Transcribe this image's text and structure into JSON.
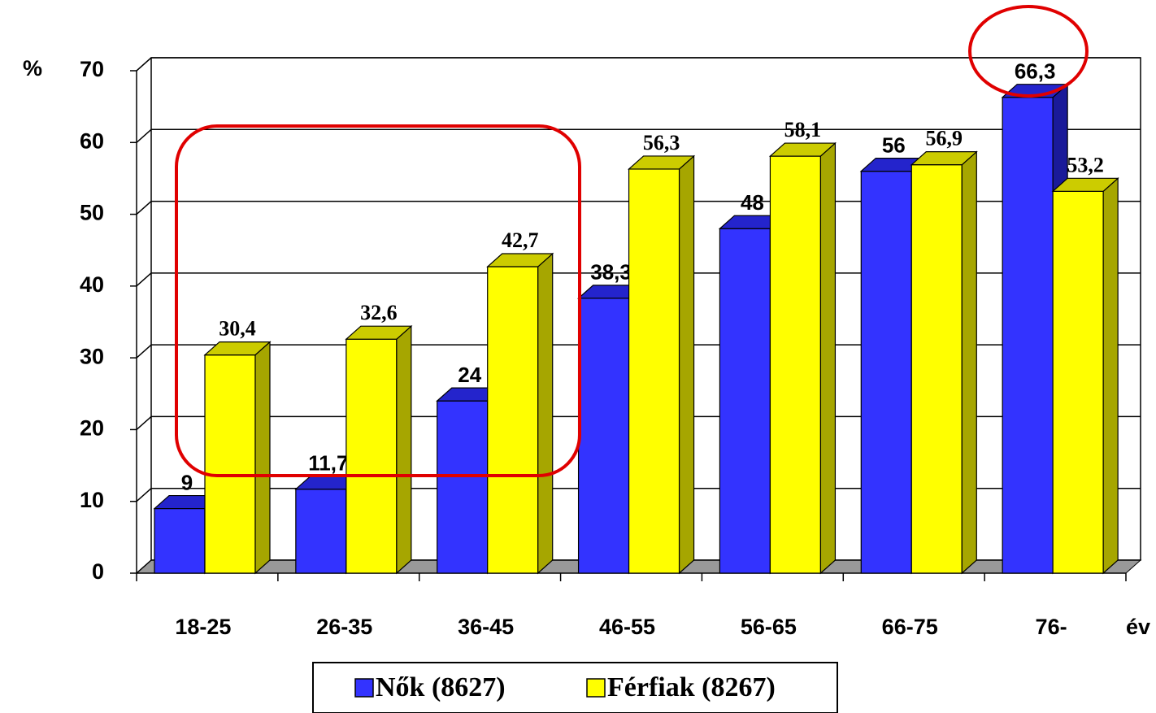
{
  "chart_data": {
    "type": "bar3d",
    "y_label": "%",
    "x_label": "év",
    "categories": [
      "18-25",
      "26-35",
      "36-45",
      "46-55",
      "56-65",
      "66-75",
      "76-"
    ],
    "series": [
      {
        "name": "Nők (8627)",
        "color": "#3333ff",
        "values": [
          9,
          11.7,
          24,
          38.3,
          48,
          56,
          66.3
        ],
        "value_labels": [
          "9",
          "11,7",
          "24",
          "38,3",
          "48",
          "56",
          "66,3"
        ]
      },
      {
        "name": "Férfiak (8267)",
        "color": "#ffff00",
        "values": [
          30.4,
          32.6,
          42.7,
          56.3,
          58.1,
          56.9,
          53.2
        ],
        "value_labels": [
          "30,4",
          "32,6",
          "42,7",
          "56,3",
          "58,1",
          "56,9",
          "53,2"
        ]
      }
    ],
    "ylim": [
      0,
      70
    ],
    "yticks": [
      0,
      10,
      20,
      30,
      40,
      50,
      60,
      70
    ],
    "grid": true
  }
}
